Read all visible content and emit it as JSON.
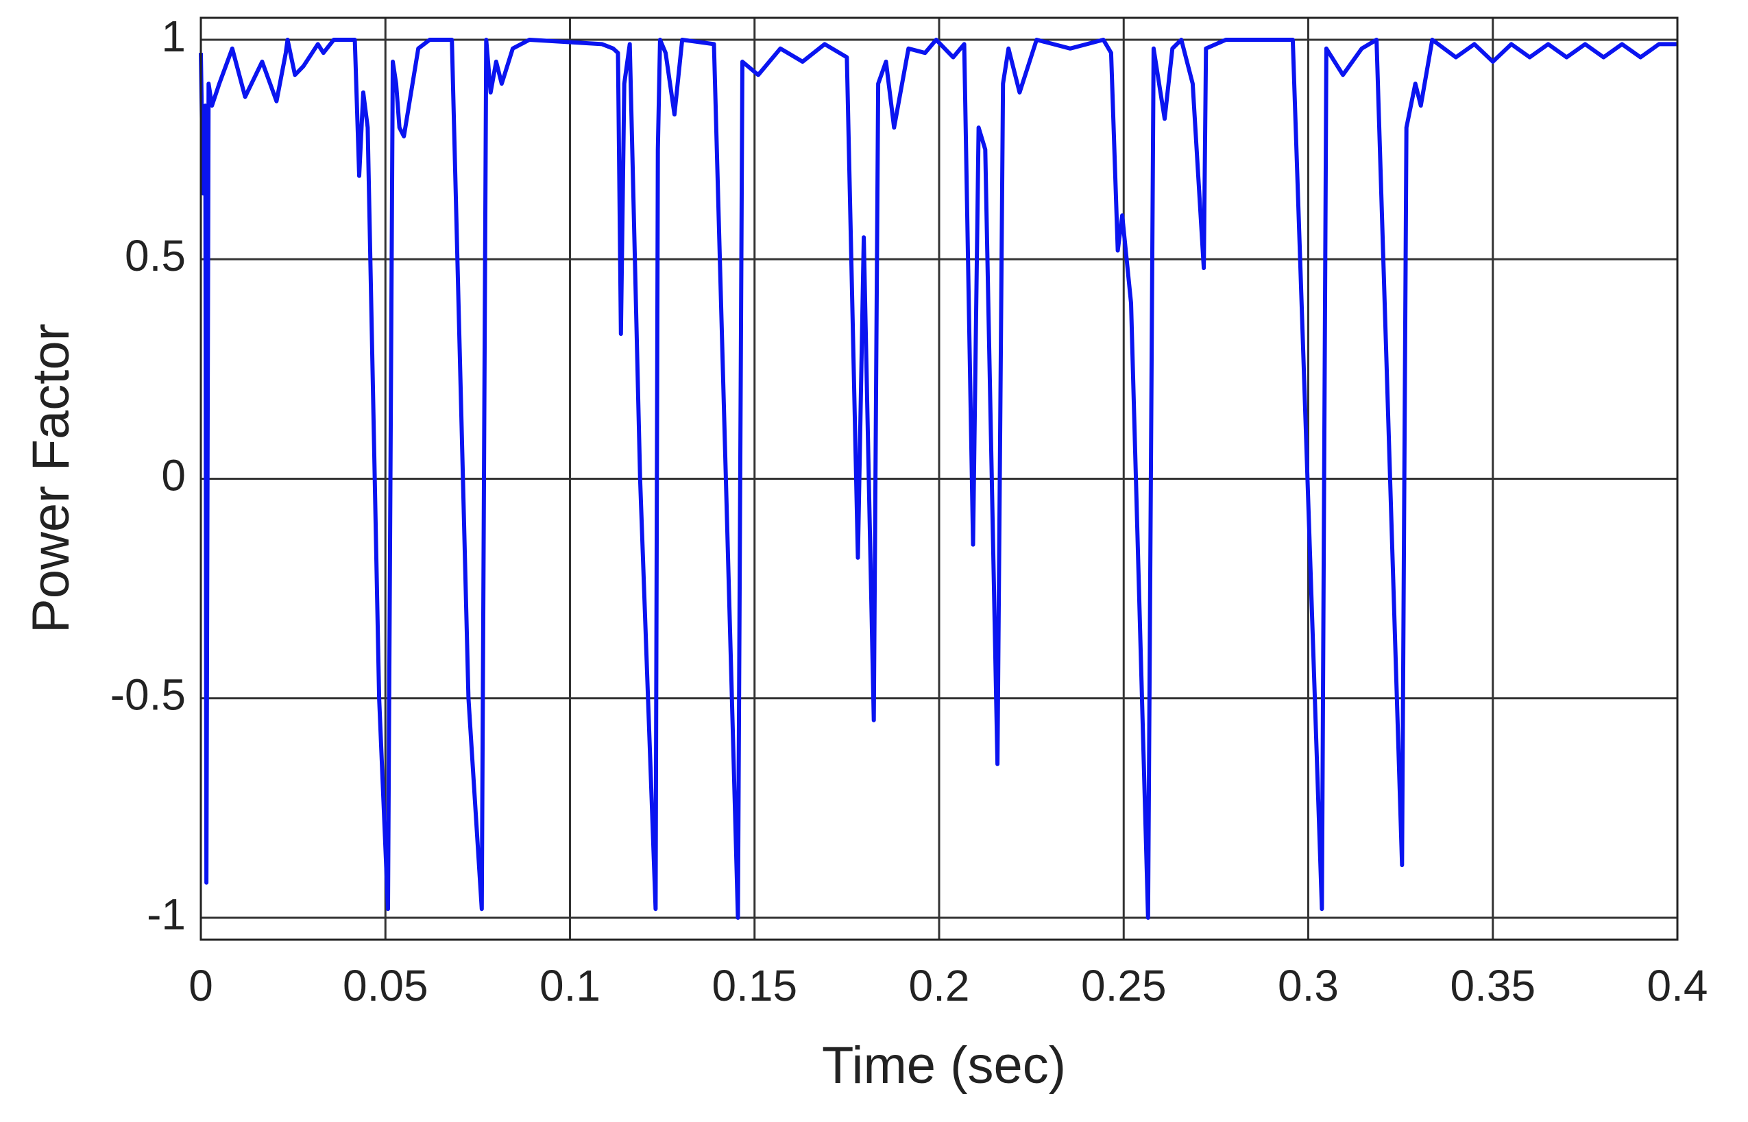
{
  "chart_data": {
    "type": "line",
    "xlabel": "Time (sec)",
    "ylabel": "Power Factor",
    "color": "#0a14f0",
    "x": [
      0,
      0.0006,
      0.0012,
      0.0015,
      0.0021,
      0.003,
      0.005,
      0.0085,
      0.012,
      0.0166,
      0.0205,
      0.023,
      0.0235,
      0.0255,
      0.0278,
      0.0317,
      0.0332,
      0.036,
      0.0417,
      0.0429,
      0.044,
      0.0452,
      0.0483,
      0.0507,
      0.052,
      0.0529,
      0.0538,
      0.055,
      0.0589,
      0.062,
      0.068,
      0.0725,
      0.0761,
      0.0773,
      0.0785,
      0.08,
      0.0815,
      0.0845,
      0.089,
      0.1087,
      0.1117,
      0.113,
      0.1138,
      0.1147,
      0.1162,
      0.119,
      0.1232,
      0.1238,
      0.1244,
      0.1259,
      0.1283,
      0.1304,
      0.139,
      0.1455,
      0.1467,
      0.151,
      0.157,
      0.163,
      0.169,
      0.175,
      0.178,
      0.1796,
      0.1823,
      0.1835,
      0.1856,
      0.1878,
      0.1917,
      0.1962,
      0.1992,
      0.2038,
      0.2068,
      0.2092,
      0.2107,
      0.2125,
      0.2158,
      0.2173,
      0.2188,
      0.2218,
      0.2264,
      0.2355,
      0.2445,
      0.2466,
      0.2484,
      0.2496,
      0.252,
      0.2566,
      0.2581,
      0.2596,
      0.2611,
      0.2632,
      0.2656,
      0.2687,
      0.2717,
      0.2723,
      0.2777,
      0.2958,
      0.3037,
      0.3049,
      0.3094,
      0.3145,
      0.3185,
      0.3254,
      0.3266,
      0.329,
      0.3305,
      0.3336,
      0.34,
      0.345,
      0.35,
      0.355,
      0.36,
      0.365,
      0.37,
      0.375,
      0.38,
      0.385,
      0.39,
      0.395,
      0.4
    ],
    "values": [
      0.97,
      0.65,
      0.85,
      -0.92,
      0.9,
      0.85,
      0.9,
      0.98,
      0.87,
      0.95,
      0.86,
      0.97,
      1.0,
      0.92,
      0.94,
      0.99,
      0.97,
      1.0,
      1.0,
      0.69,
      0.88,
      0.8,
      -0.5,
      -0.98,
      0.95,
      0.9,
      0.8,
      0.78,
      0.98,
      1.0,
      1.0,
      -0.5,
      -0.98,
      1.0,
      0.88,
      0.95,
      0.9,
      0.98,
      1.0,
      0.99,
      0.98,
      0.97,
      0.33,
      0.9,
      0.99,
      0.0,
      -0.98,
      0.75,
      1.0,
      0.97,
      0.83,
      1.0,
      0.99,
      -1.0,
      0.95,
      0.92,
      0.98,
      0.95,
      0.99,
      0.96,
      -0.18,
      0.55,
      -0.55,
      0.9,
      0.95,
      0.8,
      0.98,
      0.97,
      1.0,
      0.96,
      0.99,
      -0.15,
      0.8,
      0.75,
      -0.65,
      0.9,
      0.98,
      0.88,
      1.0,
      0.98,
      1.0,
      0.97,
      0.52,
      0.6,
      0.4,
      -1.0,
      0.98,
      0.9,
      0.82,
      0.98,
      1.0,
      0.9,
      0.48,
      0.98,
      1.0,
      1.0,
      -0.98,
      0.98,
      0.92,
      0.98,
      1.0,
      -0.88,
      0.8,
      0.9,
      0.85,
      1.0,
      0.96,
      0.99,
      0.95,
      0.99,
      0.96,
      0.99,
      0.96,
      0.99,
      0.96,
      0.99,
      0.96,
      0.99,
      0.99
    ],
    "xlim": [
      0,
      0.4
    ],
    "xticks": [
      0,
      0.05,
      0.1,
      0.15,
      0.2,
      0.25,
      0.3,
      0.35,
      0.4
    ],
    "ylim": [
      -1.05,
      1.05
    ],
    "yticks": [
      -1,
      -0.5,
      0,
      0.5,
      1
    ],
    "grid": true
  }
}
